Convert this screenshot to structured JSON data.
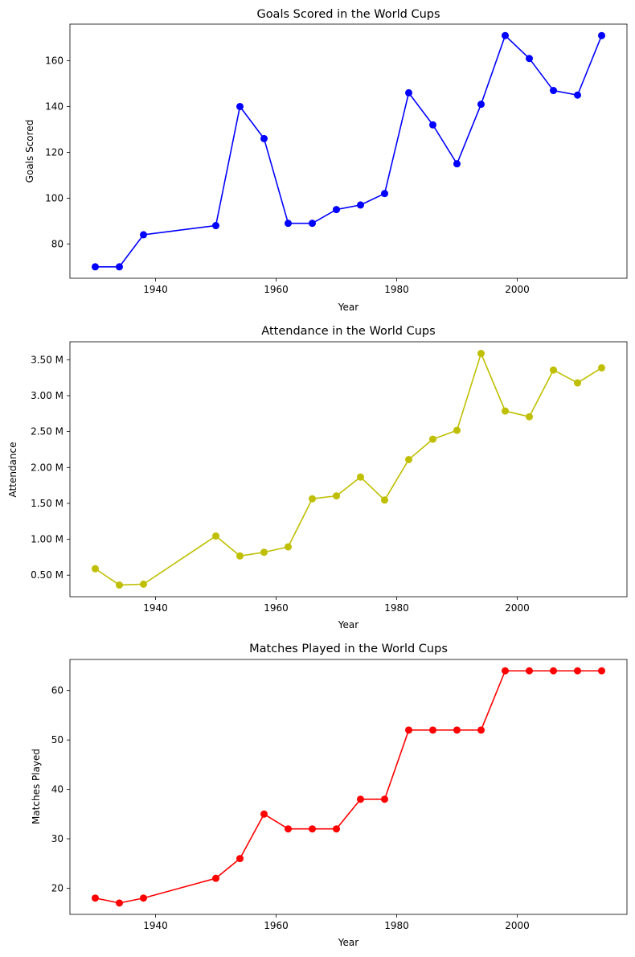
{
  "chart_data": [
    {
      "type": "line",
      "title": "Goals Scored in the World Cups",
      "xlabel": "Year",
      "ylabel": "Goals Scored",
      "xlim": [
        1925.8,
        2018.2
      ],
      "ylim": [
        65,
        176
      ],
      "xticks": [
        1940,
        1960,
        1980,
        2000
      ],
      "yticks": [
        80,
        100,
        120,
        140,
        160
      ],
      "ytick_labels": [
        "80",
        "100",
        "120",
        "140",
        "160"
      ],
      "color": "#0000ff",
      "marker": "circle",
      "grid": false,
      "series": [
        {
          "x": [
            1930,
            1934,
            1938,
            1950,
            1954,
            1958,
            1962,
            1966,
            1970,
            1974,
            1978,
            1982,
            1986,
            1990,
            1994,
            1998,
            2002,
            2006,
            2010,
            2014
          ],
          "y": [
            70,
            70,
            84,
            88,
            140,
            126,
            89,
            89,
            95,
            97,
            102,
            146,
            132,
            115,
            141,
            171,
            161,
            147,
            145,
            171
          ]
        }
      ]
    },
    {
      "type": "line",
      "title": "Attendance in the World Cups",
      "xlabel": "Year",
      "ylabel": "Attendance",
      "xlim": [
        1925.8,
        2018.2
      ],
      "ylim": [
        200000,
        3750000
      ],
      "xticks": [
        1940,
        1960,
        1980,
        2000
      ],
      "yticks": [
        500000,
        1000000,
        1500000,
        2000000,
        2500000,
        3000000,
        3500000
      ],
      "ytick_labels": [
        "0.50 M",
        "1.00 M",
        "1.50 M",
        "2.00 M",
        "2.50 M",
        "3.00 M",
        "3.50 M"
      ],
      "color": "#bfbf00",
      "marker": "circle",
      "grid": false,
      "series": [
        {
          "x": [
            1930,
            1934,
            1938,
            1950,
            1954,
            1958,
            1962,
            1966,
            1970,
            1974,
            1978,
            1982,
            1986,
            1990,
            1994,
            1998,
            2002,
            2006,
            2010,
            2014
          ],
          "y": [
            590000,
            363000,
            375000,
            1045000,
            768000,
            819000,
            894000,
            1564000,
            1604000,
            1866000,
            1546000,
            2110000,
            2394000,
            2517000,
            3587000,
            2786000,
            2706000,
            3357000,
            3178000,
            3387000
          ]
        }
      ]
    },
    {
      "type": "line",
      "title": "Matches Played in the World Cups",
      "xlabel": "Year",
      "ylabel": "Matches Played",
      "xlim": [
        1925.8,
        2018.2
      ],
      "ylim": [
        14.7,
        66.3
      ],
      "xticks": [
        1940,
        1960,
        1980,
        2000
      ],
      "yticks": [
        20,
        30,
        40,
        50,
        60
      ],
      "ytick_labels": [
        "20",
        "30",
        "40",
        "50",
        "60"
      ],
      "color": "#ff0000",
      "marker": "circle",
      "grid": false,
      "series": [
        {
          "x": [
            1930,
            1934,
            1938,
            1950,
            1954,
            1958,
            1962,
            1966,
            1970,
            1974,
            1978,
            1982,
            1986,
            1990,
            1994,
            1998,
            2002,
            2006,
            2010,
            2014
          ],
          "y": [
            18,
            17,
            18,
            22,
            26,
            35,
            32,
            32,
            32,
            38,
            38,
            52,
            52,
            52,
            52,
            64,
            64,
            64,
            64,
            64
          ]
        }
      ]
    }
  ]
}
